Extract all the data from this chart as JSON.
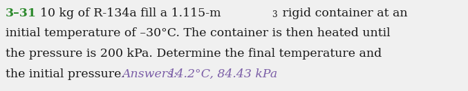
{
  "problem_number": "3–31",
  "line1_pre": "10 kg of R-134a fill a 1.115-m",
  "superscript": "3",
  "line1_post": " rigid container at an",
  "line2": "initial temperature of –30°C. The container is then heated until",
  "line3": "the pressure is 200 kPa. Determine the final temperature and",
  "line4_main": "the initial pressure.",
  "answer_label": "Answers:",
  "answer_text": " 14.2°C, 84.43 kPa",
  "problem_color": "#2d8a2d",
  "text_color": "#1a1a1a",
  "answer_color": "#7b5ea7",
  "background_color": "#f0f0f0",
  "font_size": 12.5,
  "answer_font_size": 12.5
}
